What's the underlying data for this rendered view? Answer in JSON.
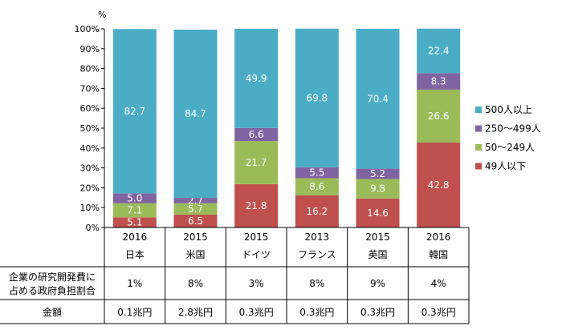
{
  "chart_data": {
    "type": "bar",
    "stacked": true,
    "y_unit": "%",
    "ylim": [
      0,
      100
    ],
    "yticks": [
      "0%",
      "10%",
      "20%",
      "30%",
      "40%",
      "50%",
      "60%",
      "70%",
      "80%",
      "90%",
      "100%"
    ],
    "grid": false,
    "legend_position": "right",
    "years": [
      "2016",
      "2015",
      "2015",
      "2013",
      "2015",
      "2016"
    ],
    "categories": [
      "日本",
      "米国",
      "ドイツ",
      "フランス",
      "英国",
      "韓国"
    ],
    "series": [
      {
        "name": "49人以下",
        "color": "#c0504d",
        "values": [
          5.1,
          6.5,
          21.8,
          16.2,
          14.6,
          42.8
        ]
      },
      {
        "name": "50～249人",
        "color": "#9bbb59",
        "values": [
          7.1,
          5.7,
          21.7,
          8.6,
          9.8,
          26.6
        ]
      },
      {
        "name": "250～499人",
        "color": "#8064a2",
        "values": [
          5.0,
          2.7,
          6.6,
          5.5,
          5.2,
          8.3
        ]
      },
      {
        "name": "500人以上",
        "color": "#4bacc6",
        "values": [
          82.7,
          84.7,
          49.9,
          69.8,
          70.4,
          22.4
        ]
      }
    ],
    "value_labels": [
      [
        "5.1",
        "6.5",
        "21.8",
        "16.2",
        "14.6",
        "42.8"
      ],
      [
        "7.1",
        "5.7",
        "21.7",
        "8.6",
        "9.8",
        "26.6"
      ],
      [
        "5.0",
        "2.7",
        "6.6",
        "5.5",
        "5.2",
        "8.3"
      ],
      [
        "82.7",
        "84.7",
        "49.9",
        "69.8",
        "70.4",
        "22.4"
      ]
    ],
    "legend_order": [
      "500人以上",
      "250～499人",
      "50～249人",
      "49人以下"
    ],
    "table": {
      "row1_label_line1": "企業の研究開発費に",
      "row1_label_line2": "占める政府負担割合",
      "row1_values": [
        "1%",
        "8%",
        "3%",
        "8%",
        "9%",
        "4%"
      ],
      "row2_label": "金額",
      "row2_values": [
        "0.1兆円",
        "2.8兆円",
        "0.3兆円",
        "0.3兆円",
        "0.3兆円",
        "0.3兆円"
      ]
    }
  }
}
